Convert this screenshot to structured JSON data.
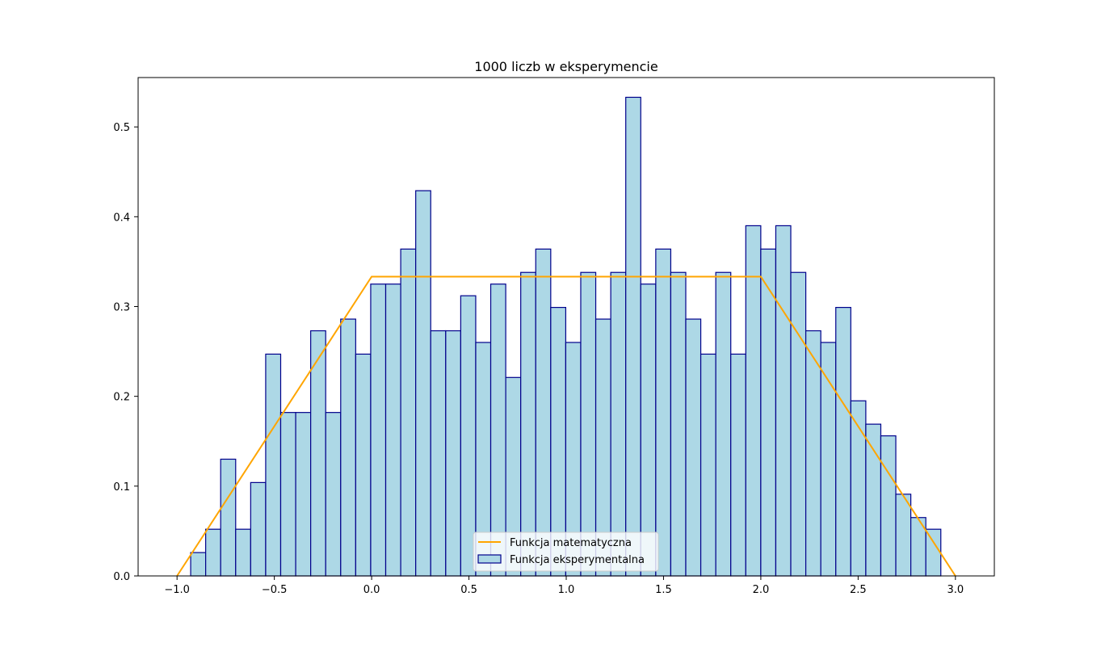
{
  "chart_data": {
    "type": "bar",
    "title": "1000 liczb w eksperymencie",
    "xlabel": "",
    "ylabel": "",
    "xlim": [
      -1.2,
      3.2
    ],
    "ylim": [
      0,
      0.555
    ],
    "xticks": [
      -1.0,
      -0.5,
      0.0,
      0.5,
      1.0,
      1.5,
      2.0,
      2.5,
      3.0
    ],
    "xtick_labels": [
      "−1.0",
      "−0.5",
      "0.0",
      "0.5",
      "1.0",
      "1.5",
      "2.0",
      "2.5",
      "3.0"
    ],
    "yticks": [
      0.0,
      0.1,
      0.2,
      0.3,
      0.4,
      0.5
    ],
    "ytick_labels": [
      "0.0",
      "0.1",
      "0.2",
      "0.3",
      "0.4",
      "0.5"
    ],
    "grid": false,
    "legend_position": "lower center",
    "colors": {
      "bar_fill": "#add8e6",
      "bar_edge": "#00008b",
      "line": "#ffa500"
    },
    "series": [
      {
        "name": "Funkcja eksperymentalna",
        "kind": "histogram",
        "bin_start": -0.93,
        "bin_width": 0.0771,
        "values": [
          0.026,
          0.052,
          0.13,
          0.052,
          0.104,
          0.247,
          0.182,
          0.182,
          0.273,
          0.182,
          0.286,
          0.247,
          0.325,
          0.325,
          0.364,
          0.429,
          0.273,
          0.273,
          0.312,
          0.26,
          0.325,
          0.221,
          0.338,
          0.364,
          0.299,
          0.26,
          0.338,
          0.286,
          0.338,
          0.533,
          0.325,
          0.364,
          0.338,
          0.286,
          0.247,
          0.338,
          0.247,
          0.39,
          0.364,
          0.39,
          0.338,
          0.273,
          0.26,
          0.299,
          0.195,
          0.169,
          0.156,
          0.091,
          0.065,
          0.052
        ]
      },
      {
        "name": "Funkcja matematyczna",
        "kind": "line",
        "x": [
          -1.0,
          0.0,
          2.0,
          3.0
        ],
        "y": [
          0.0,
          0.3333,
          0.3333,
          0.0
        ]
      }
    ]
  }
}
